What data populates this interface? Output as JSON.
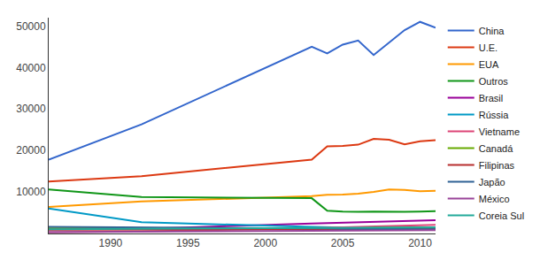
{
  "chart_data": {
    "type": "line",
    "x": [
      1986,
      1992,
      2003,
      2004,
      2005,
      2006,
      2007,
      2008,
      2009,
      2010,
      2011
    ],
    "xlim": [
      1986,
      2011
    ],
    "xticks": [
      1990,
      1995,
      2000,
      2005,
      2010
    ],
    "ylim": [
      0,
      52000
    ],
    "yticks": [
      10000,
      20000,
      30000,
      40000,
      50000
    ],
    "grid": false,
    "legend": "right",
    "series": [
      {
        "name": "China",
        "color": "#3366cc",
        "values": [
          17800,
          26300,
          45000,
          43400,
          45500,
          46500,
          43000,
          46000,
          49000,
          51000,
          49600
        ]
      },
      {
        "name": "U.E.",
        "color": "#dc3912",
        "values": [
          12500,
          13800,
          17800,
          21000,
          21100,
          21400,
          22800,
          22600,
          21500,
          22200,
          22500
        ]
      },
      {
        "name": "EUA",
        "color": "#ff9900",
        "values": [
          6400,
          7700,
          9000,
          9300,
          9400,
          9600,
          10000,
          10600,
          10500,
          10200,
          10300
        ]
      },
      {
        "name": "Outros",
        "color": "#109618",
        "values": [
          10600,
          8800,
          8500,
          5500,
          5300,
          5200,
          5300,
          5200,
          5200,
          5300,
          5400
        ]
      },
      {
        "name": "Brasil",
        "color": "#990099",
        "values": [
          1000,
          1100,
          2400,
          2500,
          2600,
          2700,
          2800,
          2900,
          3000,
          3100,
          3200
        ]
      },
      {
        "name": "Rússia",
        "color": "#0099c6",
        "values": [
          6000,
          2700,
          1600,
          1500,
          1400,
          1400,
          1300,
          1300,
          1200,
          1200,
          1100
        ]
      },
      {
        "name": "Vietname",
        "color": "#dd4477",
        "values": [
          300,
          500,
          1300,
          1400,
          1500,
          1600,
          1700,
          1800,
          1900,
          2000,
          2100
        ]
      },
      {
        "name": "Canadá",
        "color": "#66aa00",
        "values": [
          1200,
          1200,
          1300,
          1300,
          1300,
          1300,
          1400,
          1400,
          1400,
          1500,
          1500
        ]
      },
      {
        "name": "Filipinas",
        "color": "#b82e2e",
        "values": [
          900,
          900,
          1000,
          1000,
          1000,
          1000,
          1100,
          1100,
          1100,
          1100,
          1100
        ]
      },
      {
        "name": "Japão",
        "color": "#316395",
        "values": [
          1600,
          1500,
          1200,
          1200,
          1100,
          1100,
          1100,
          1000,
          1000,
          1000,
          1000
        ]
      },
      {
        "name": "México",
        "color": "#994499",
        "values": [
          300,
          400,
          600,
          600,
          700,
          700,
          700,
          800,
          800,
          800,
          800
        ]
      },
      {
        "name": "Coreia Sul",
        "color": "#22aa99",
        "values": [
          1000,
          1100,
          1300,
          1300,
          1400,
          1400,
          1400,
          1500,
          1500,
          1500,
          1500
        ]
      }
    ]
  }
}
